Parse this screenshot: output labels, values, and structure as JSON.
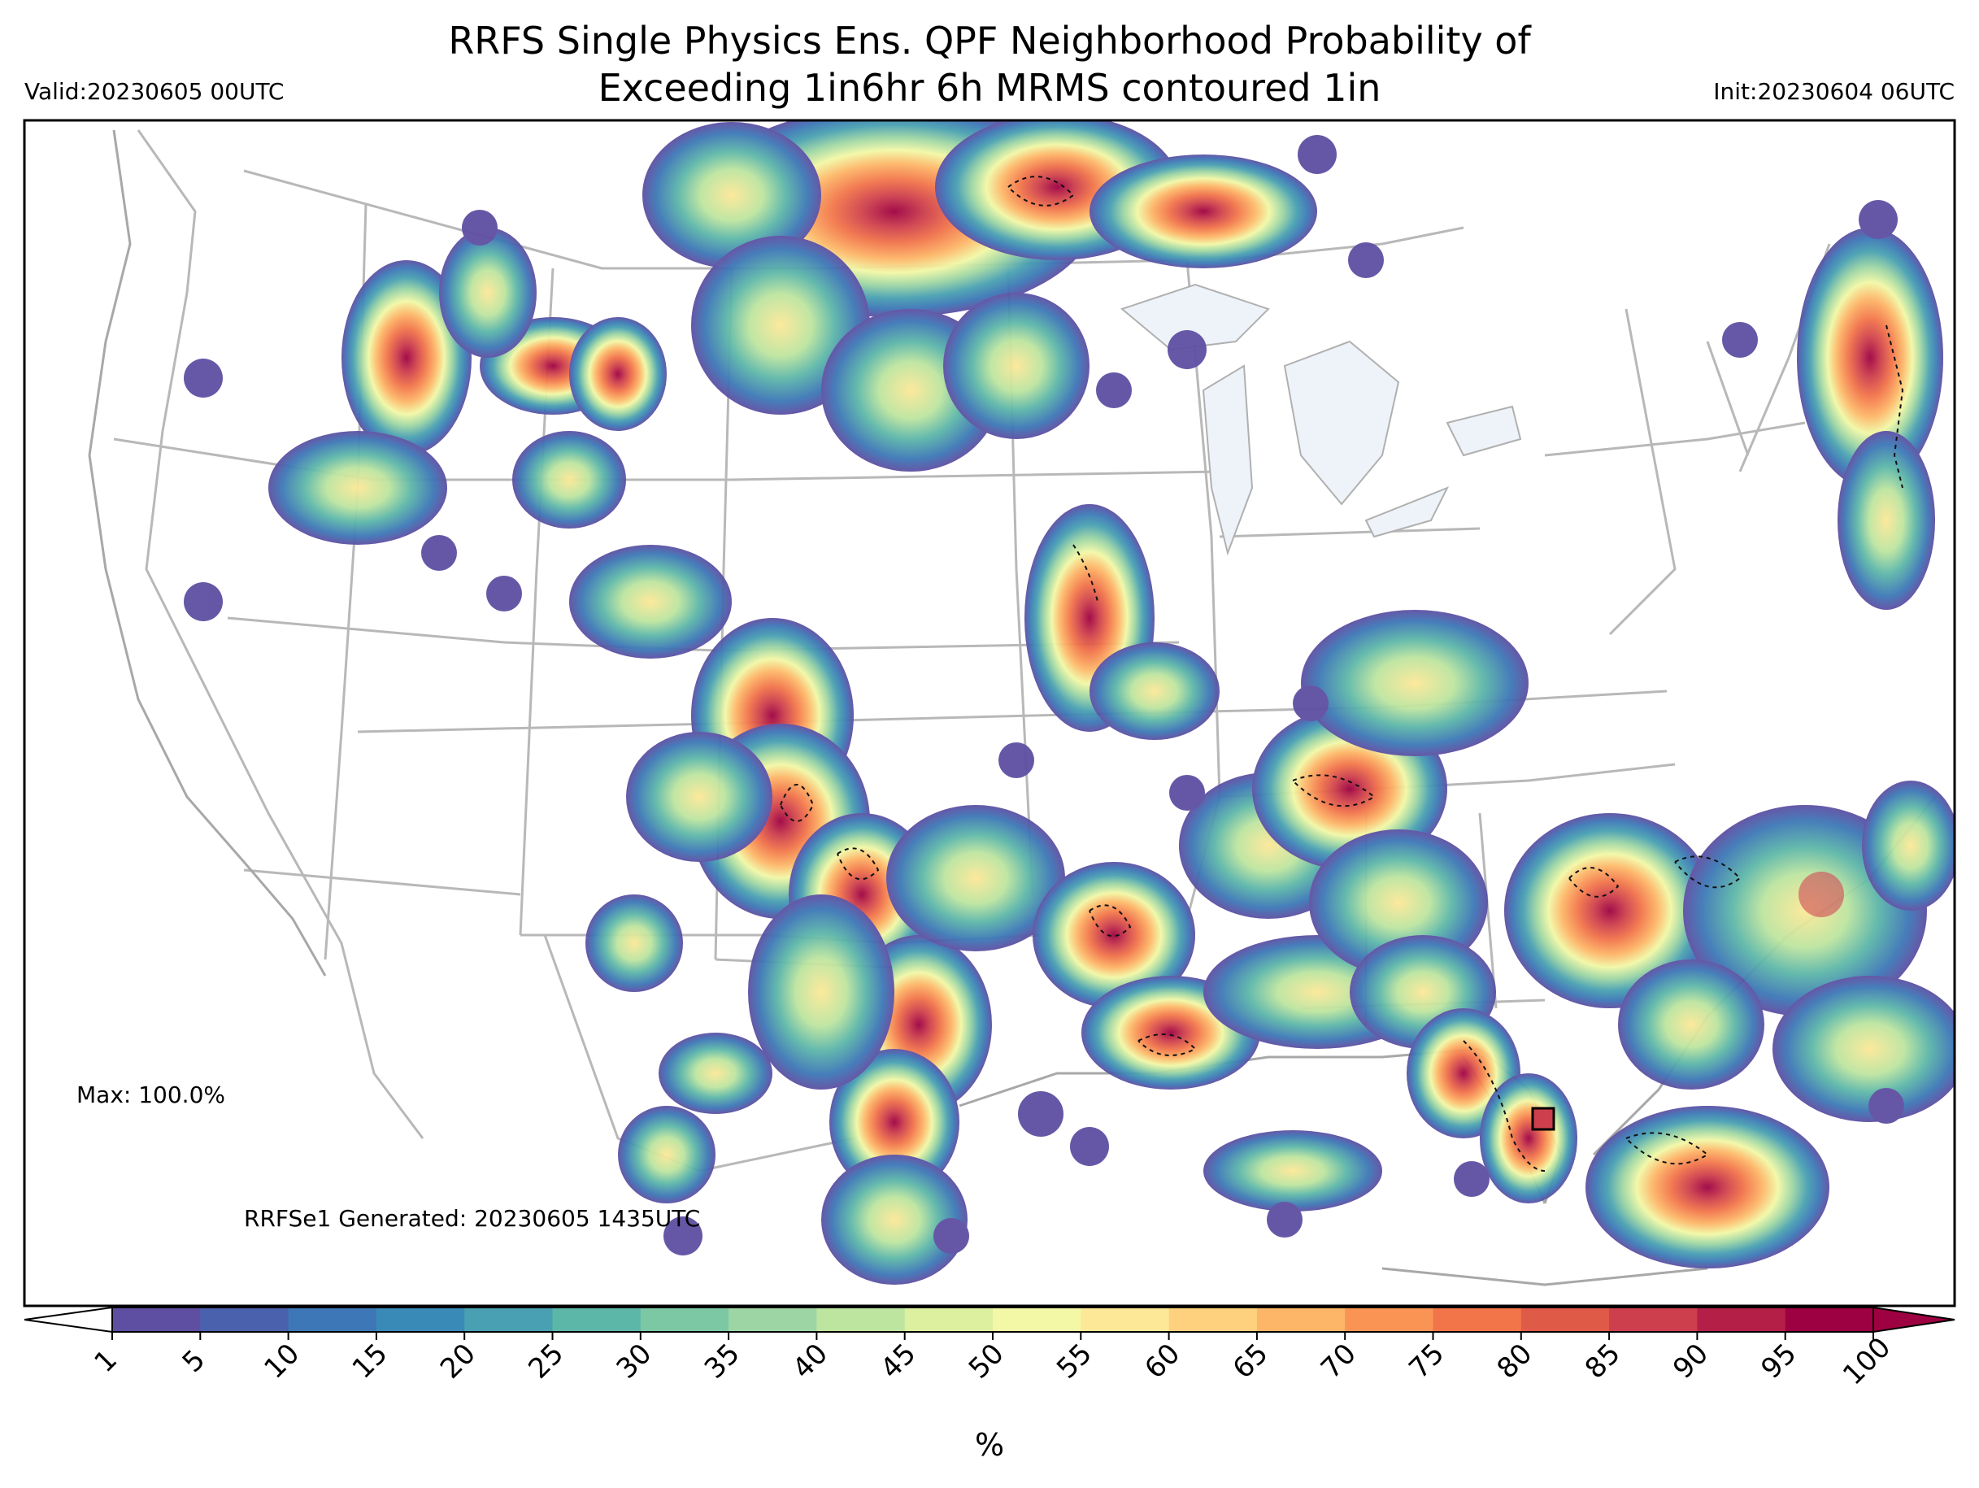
{
  "header": {
    "title_line1": "RRFS Single Physics Ens. QPF Neighborhood Probability of",
    "title_line2": "Exceeding 1in6hr 6h MRMS contoured 1in",
    "valid": "Valid:20230605 00UTC",
    "init": "Init:20230604 06UTC"
  },
  "annotations": {
    "max": "Max: 100.0%",
    "generated": "RRFSe1 Generated: 20230605 1435UTC"
  },
  "colorbar": {
    "label": "%",
    "ticks": [
      "1",
      "5",
      "10",
      "15",
      "20",
      "25",
      "30",
      "35",
      "40",
      "45",
      "50",
      "55",
      "60",
      "65",
      "70",
      "75",
      "80",
      "85",
      "90",
      "95",
      "100"
    ],
    "colors": [
      "#5e4fa2",
      "#4a62ad",
      "#3d77b7",
      "#3a8ab8",
      "#48a0b2",
      "#5db7a9",
      "#7cc8a4",
      "#9dd6a4",
      "#bde5a0",
      "#dcf0a0",
      "#f2f8a6",
      "#fde897",
      "#fed17f",
      "#fdb567",
      "#f99455",
      "#f2754a",
      "#e05a48",
      "#cd3f4c",
      "#b41f48",
      "#9e0142"
    ],
    "under_color": "#ffffff",
    "over_color": "#9e0142"
  },
  "map": {
    "projection": "lambert-conformal-conus",
    "background": "#ffffff",
    "boundary_color": "#b0b0b0",
    "lake_color": "#eef3f9",
    "contour_style": "dashed-black"
  },
  "chart_data": {
    "type": "heatmap",
    "title": "RRFS Single Physics Ens. QPF Neighborhood Probability of Exceeding 1in6hr 6h MRMS contoured 1in",
    "units": "%",
    "range": [
      1,
      100
    ],
    "max_value": 100.0,
    "colorbar_ticks": [
      1,
      5,
      10,
      15,
      20,
      25,
      30,
      35,
      40,
      45,
      50,
      55,
      60,
      65,
      70,
      75,
      80,
      85,
      90,
      95,
      100
    ]
  }
}
